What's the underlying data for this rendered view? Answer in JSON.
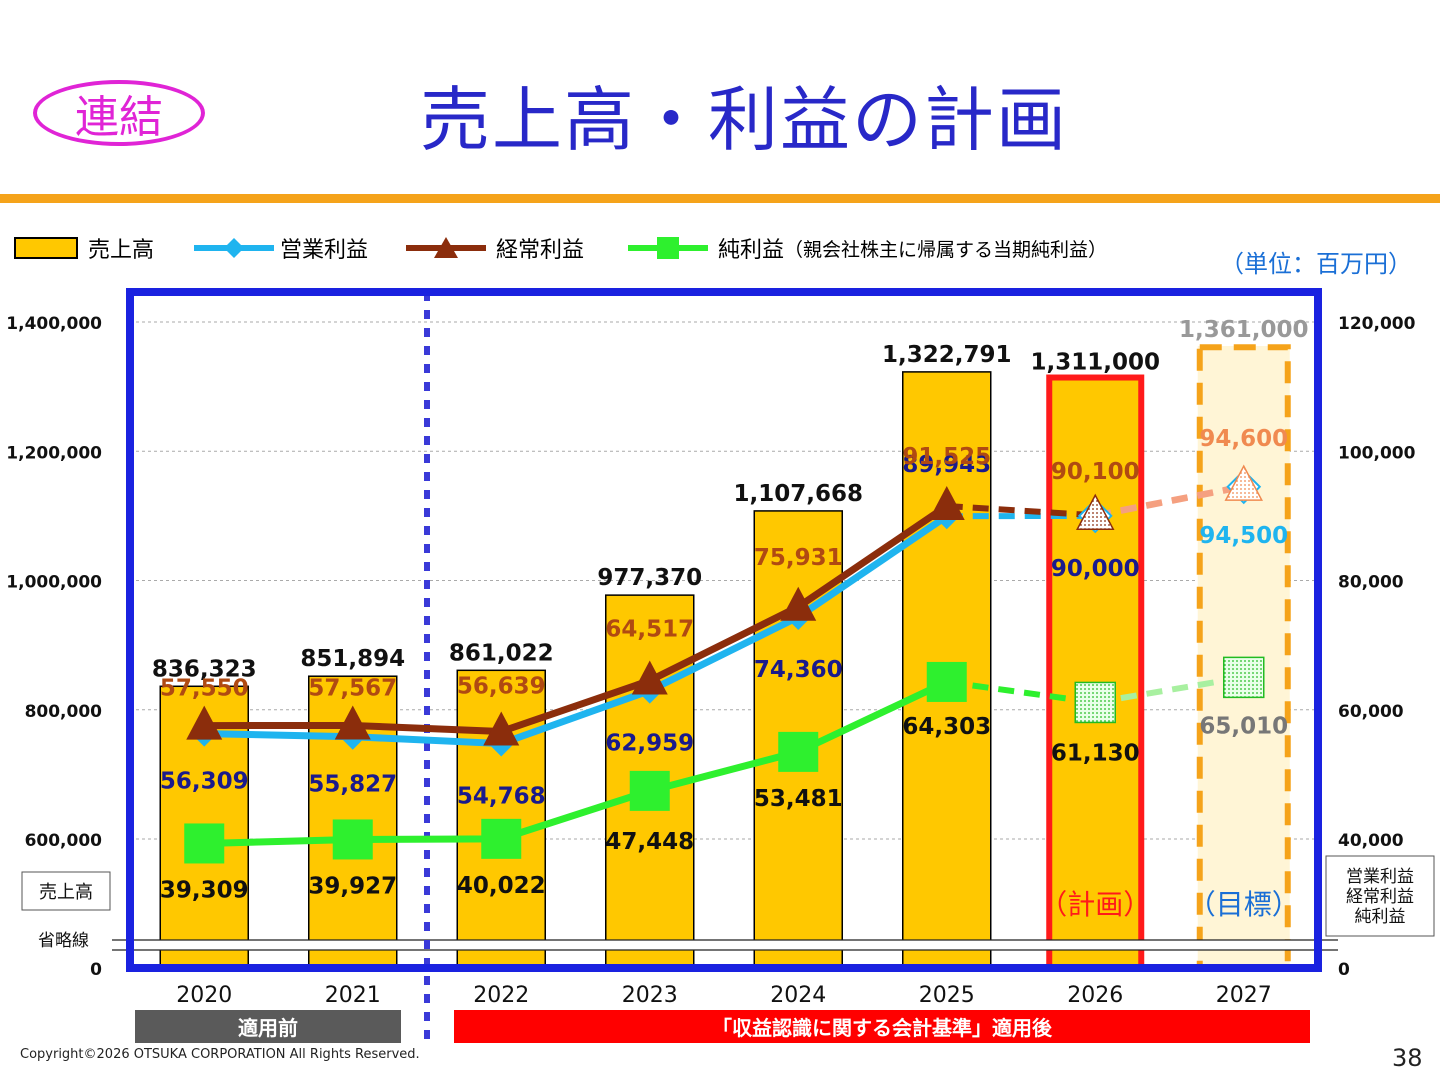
{
  "header": {
    "badge": "連結",
    "title": "売上高・利益の計画"
  },
  "unit": "（単位：百万円）",
  "legend": {
    "sales": "売上高",
    "operating": "営業利益",
    "ordinary": "経常利益",
    "net": "純利益",
    "net_note": "（親会社株主に帰属する当期純利益）"
  },
  "labels": {
    "left_axis_box": "売上高",
    "right_axis_box": [
      "営業利益",
      "経常利益",
      "純利益"
    ],
    "omission": "省略線",
    "plan": "（計画）",
    "target": "（目標）",
    "before": "適用前",
    "after": "「収益認識に関する会計基準」適用後"
  },
  "footer": {
    "copyright": "Copyright©2026 OTSUKA CORPORATION All Rights Reserved.",
    "page": "38"
  },
  "colors": {
    "sales": "#ffc800",
    "operating": "#1fb4ef",
    "ordinary": "#8b2d0c",
    "net": "#2ef02e",
    "frame": "#1a22e0",
    "title": "#2828c8",
    "badge": "#e024d6",
    "plan": "#ff1a1a",
    "target": "#f5a31a"
  },
  "chart_data": {
    "type": "bar+line",
    "categories": [
      "2020",
      "2021",
      "2022",
      "2023",
      "2024",
      "2025",
      "2026",
      "2027"
    ],
    "left_axis": {
      "ticks": [
        "0",
        "600,000",
        "800,000",
        "1,000,000",
        "1,200,000",
        "1,400,000"
      ],
      "ylim": [
        0,
        1400000
      ],
      "broken_below": 600000
    },
    "right_axis": {
      "ticks": [
        "0",
        "40,000",
        "60,000",
        "80,000",
        "100,000",
        "120,000"
      ],
      "ylim": [
        0,
        120000
      ],
      "broken_below": 40000
    },
    "series": [
      {
        "name": "売上高",
        "type": "bar",
        "values": [
          836323,
          851894,
          861022,
          977370,
          1107668,
          1322791,
          1311000,
          1361000
        ],
        "labels": [
          "836,323",
          "851,894",
          "861,022",
          "977,370",
          "1,107,668",
          "1,322,791",
          "1,311,000",
          "1,361,000"
        ]
      },
      {
        "name": "営業利益",
        "type": "line",
        "values": [
          56309,
          55827,
          54768,
          62959,
          74360,
          89943,
          90000,
          94500
        ],
        "labels": [
          "56,309",
          "55,827",
          "54,768",
          "62,959",
          "74,360",
          "89,943",
          "90,000",
          "94,500"
        ]
      },
      {
        "name": "経常利益",
        "type": "line",
        "values": [
          57550,
          57567,
          56639,
          64517,
          75931,
          91525,
          90100,
          94600
        ],
        "labels": [
          "57,550",
          "57,567",
          "56,639",
          "64,517",
          "75,931",
          "91,525",
          "90,100",
          "94,600"
        ]
      },
      {
        "name": "純利益",
        "type": "line",
        "values": [
          39309,
          39927,
          40022,
          47448,
          53481,
          64303,
          61130,
          65010
        ],
        "labels": [
          "39,309",
          "39,927",
          "40,022",
          "47,448",
          "53,481",
          "64,303",
          "61,130",
          "65,010"
        ]
      }
    ],
    "grid": true,
    "divider_after": "2021"
  }
}
